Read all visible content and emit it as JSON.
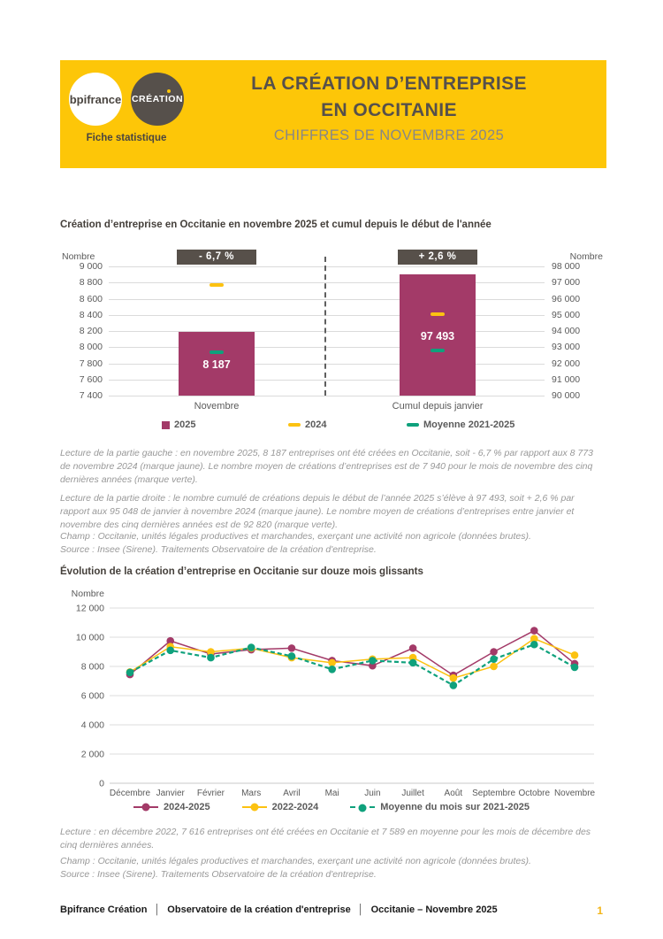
{
  "header": {
    "logo_primary": "bpifrance",
    "logo_secondary": "CRÉATION",
    "tagline": "Fiche statistique",
    "title_line1": "LA CRÉATION D’ENTREPRISE",
    "title_line2": "EN OCCITANIE",
    "subtitle": "CHIFFRES DE NOVEMBRE 2025"
  },
  "section1": {
    "title": "Création d’entreprise en Occitanie en novembre 2025 et cumul depuis le début de l'année",
    "lecture_left": "Lecture de la partie gauche : en novembre 2025, 8 187 entreprises ont été créées en Occitanie, soit - 6,7 % par rapport aux 8 773 de novembre 2024 (marque jaune). Le nombre moyen de créations d’entreprises est de 7 940 pour le mois de novembre des cinq dernières années (marque verte).",
    "lecture_right": "Lecture de la partie droite : le nombre cumulé de créations depuis le début de l’année 2025 s’élève à 97 493, soit + 2,6 % par rapport aux 95 048 de janvier à novembre 2024 (marque jaune). Le nombre moyen de créations d’entreprises entre janvier et novembre des cinq dernières années est de 92 820 (marque verte).",
    "champ": "Champ : Occitanie, unités légales productives et marchandes, exerçant une activité non agricole (données brutes).",
    "source": "Source : Insee (Sirene). Traitements Observatoire de la création d'entreprise."
  },
  "section2": {
    "title": "Évolution de la création d’entreprise en Occitanie sur douze mois glissants",
    "lecture": "Lecture : en décembre 2022, 7 616 entreprises ont été créées en Occitanie et 7 589 en moyenne pour les mois de décembre des cinq dernières années.",
    "champ": "Champ : Occitanie, unités légales productives et marchandes, exerçant une activité non agricole (données brutes).",
    "source": "Source : Insee (Sirene). Traitements Observatoire de la création d'entreprise."
  },
  "footer": {
    "item1": "Bpifrance Création",
    "item2": "Observatoire de la création d'entreprise",
    "item3": "Occitanie – Novembre 2025",
    "separator": "│",
    "page": "1"
  },
  "colors": {
    "brand_yellow": "#FDC608",
    "badge_brown": "#57504A",
    "series_2025": "#A33A68",
    "series_2024": "#FCC211",
    "series_mean": "#0FA17C",
    "axis_text": "#5A5A5A",
    "page_number": "#F3B518"
  },
  "chart_data": [
    {
      "type": "bar",
      "title": "Création d’entreprise en Occitanie en novembre 2025 et cumul depuis le début de l'année",
      "axis_label_left": "Nombre",
      "axis_label_right": "Nombre",
      "left_axis": {
        "min": 7400,
        "max": 9000,
        "step": 200
      },
      "right_axis": {
        "min": 90000,
        "max": 98000,
        "step": 1000
      },
      "groups": [
        {
          "label": "Novembre",
          "axis": "left",
          "badge": "- 6,7 %",
          "value_2025": 8187,
          "bar_label": "8 187",
          "marker_2024": 8773,
          "marker_mean": 7940
        },
        {
          "label": "Cumul depuis janvier",
          "axis": "right",
          "badge": "+ 2,6 %",
          "value_2025": 97493,
          "bar_label": "97 493",
          "marker_2024": 95048,
          "marker_mean": 92820
        }
      ],
      "legend": [
        {
          "label": "2025",
          "swatch": "square",
          "color": "#A33A68"
        },
        {
          "label": "2024",
          "swatch": "dash",
          "color": "#FCC211"
        },
        {
          "label": "Moyenne 2021-2025",
          "swatch": "dash",
          "color": "#0FA17C"
        }
      ]
    },
    {
      "type": "line",
      "title": "Évolution de la création d’entreprise en Occitanie sur douze mois glissants",
      "ylabel": "Nombre",
      "ylim": [
        0,
        12000
      ],
      "ystep": 2000,
      "grid": true,
      "legend_position": "bottom",
      "categories": [
        "Décembre",
        "Janvier",
        "Février",
        "Mars",
        "Avril",
        "Mai",
        "Juin",
        "Juillet",
        "Août",
        "Septembre",
        "Octobre",
        "Novembre"
      ],
      "series": [
        {
          "name": "2024-2025",
          "color": "#A33A68",
          "style": "solid",
          "values": [
            7450,
            9750,
            8850,
            9150,
            9250,
            8400,
            8050,
            9250,
            7390,
            9000,
            10450,
            8187
          ]
        },
        {
          "name": "2022-2024",
          "color": "#FCC211",
          "style": "solid",
          "values": [
            7616,
            9350,
            9000,
            9250,
            8600,
            8250,
            8500,
            8600,
            7200,
            8000,
            9900,
            8773
          ]
        },
        {
          "name": "Moyenne du mois sur 2021-2025",
          "color": "#0FA17C",
          "style": "dashed",
          "values": [
            7589,
            9100,
            8600,
            9300,
            8700,
            7800,
            8400,
            8250,
            6700,
            8500,
            9500,
            7940
          ]
        }
      ]
    }
  ]
}
